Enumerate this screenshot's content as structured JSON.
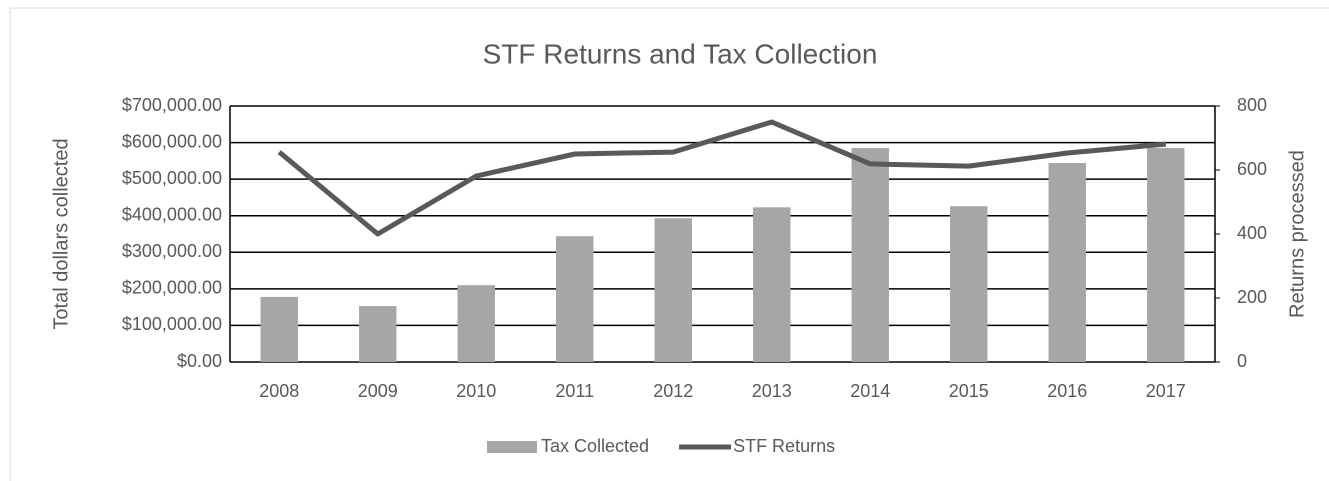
{
  "chart_data": {
    "type": "bar",
    "title": "STF Returns and Tax Collection",
    "categories": [
      "2008",
      "2009",
      "2010",
      "2011",
      "2012",
      "2013",
      "2014",
      "2015",
      "2016",
      "2017"
    ],
    "y_label": "Total dollars collected",
    "y2_label": "Returns processed",
    "series": [
      {
        "name": "Tax Collected",
        "type": "bar",
        "color": "#a6a6a6",
        "values": [
          178000,
          153000,
          210000,
          344000,
          393000,
          423000,
          585000,
          426000,
          544000,
          585000
        ]
      },
      {
        "name": "STF Returns",
        "type": "line",
        "axis": "y2",
        "color": "#595959",
        "values": [
          656,
          400,
          581,
          650,
          656,
          750,
          619,
          612,
          653,
          681
        ]
      }
    ],
    "ylim": [
      0,
      700000
    ],
    "yticks": [
      {
        "value": 0,
        "label": "$0.00"
      },
      {
        "value": 100000,
        "label": "$100,000.00"
      },
      {
        "value": 200000,
        "label": "$200,000.00"
      },
      {
        "value": 300000,
        "label": "$300,000.00"
      },
      {
        "value": 400000,
        "label": "$400,000.00"
      },
      {
        "value": 500000,
        "label": "$500,000.00"
      },
      {
        "value": 600000,
        "label": "$600,000.00"
      },
      {
        "value": 700000,
        "label": "$700,000.00"
      }
    ],
    "y2lim": [
      0,
      800
    ],
    "y2ticks": [
      0,
      200,
      400,
      600,
      800
    ],
    "grid": true,
    "legend": "bottom"
  }
}
